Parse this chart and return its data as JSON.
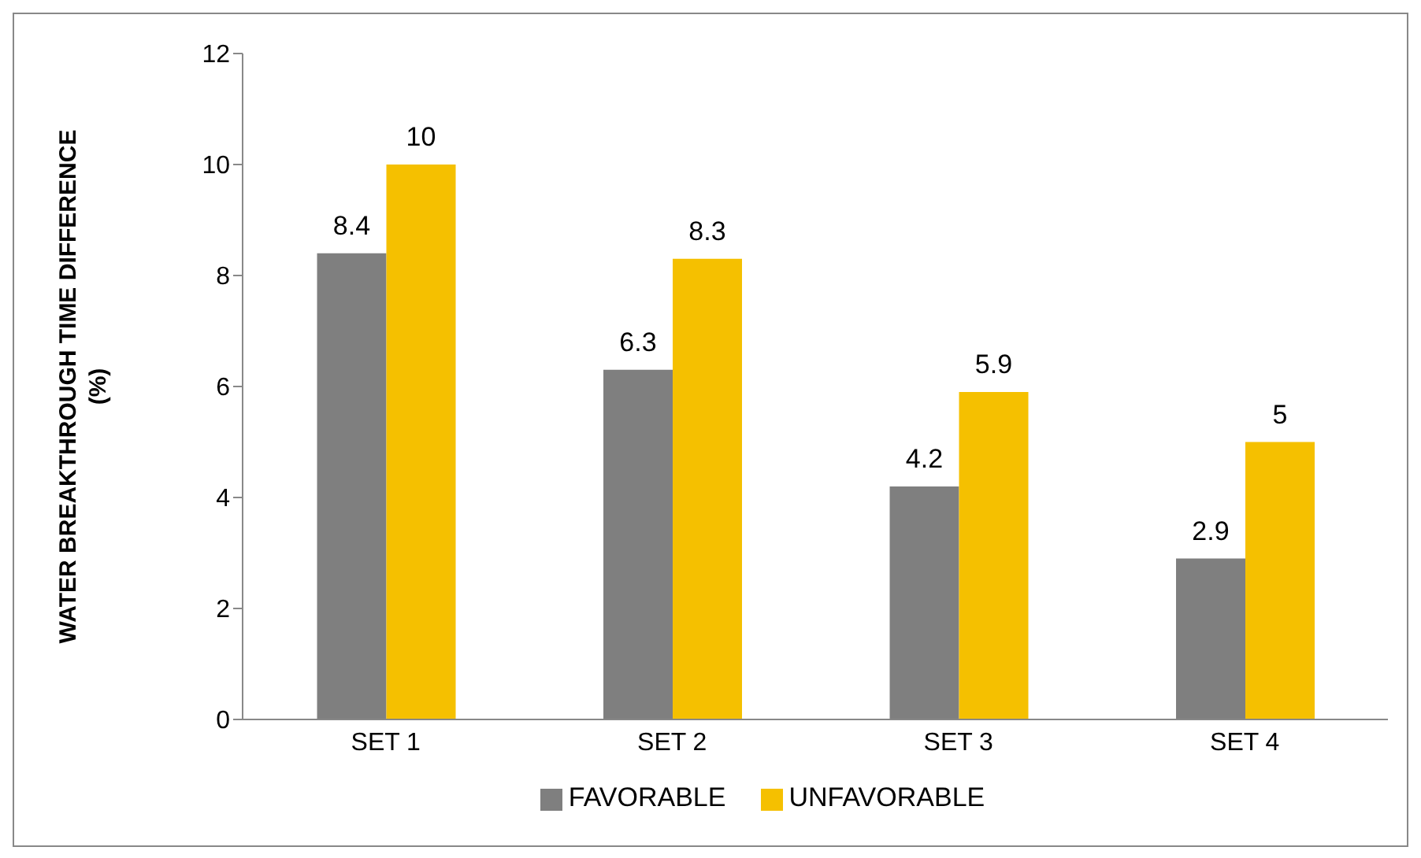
{
  "chart_data": {
    "type": "bar",
    "ylabel": "WATER BREAKTHROUGH TIME DIFFERENCE (%)",
    "categories": [
      "SET 1",
      "SET 2",
      "SET 3",
      "SET 4"
    ],
    "series": [
      {
        "name": "FAVORABLE",
        "color": "#7f7f7f",
        "values": [
          8.4,
          6.3,
          4.2,
          2.9
        ]
      },
      {
        "name": "UNFAVORABLE",
        "color": "#f5c000",
        "values": [
          10,
          8.3,
          5.9,
          5
        ]
      }
    ],
    "ylim": [
      0,
      12
    ],
    "yticks": [
      0,
      2,
      4,
      6,
      8,
      10,
      12
    ],
    "data_labels": true,
    "legend": "bottom",
    "grid": false
  }
}
